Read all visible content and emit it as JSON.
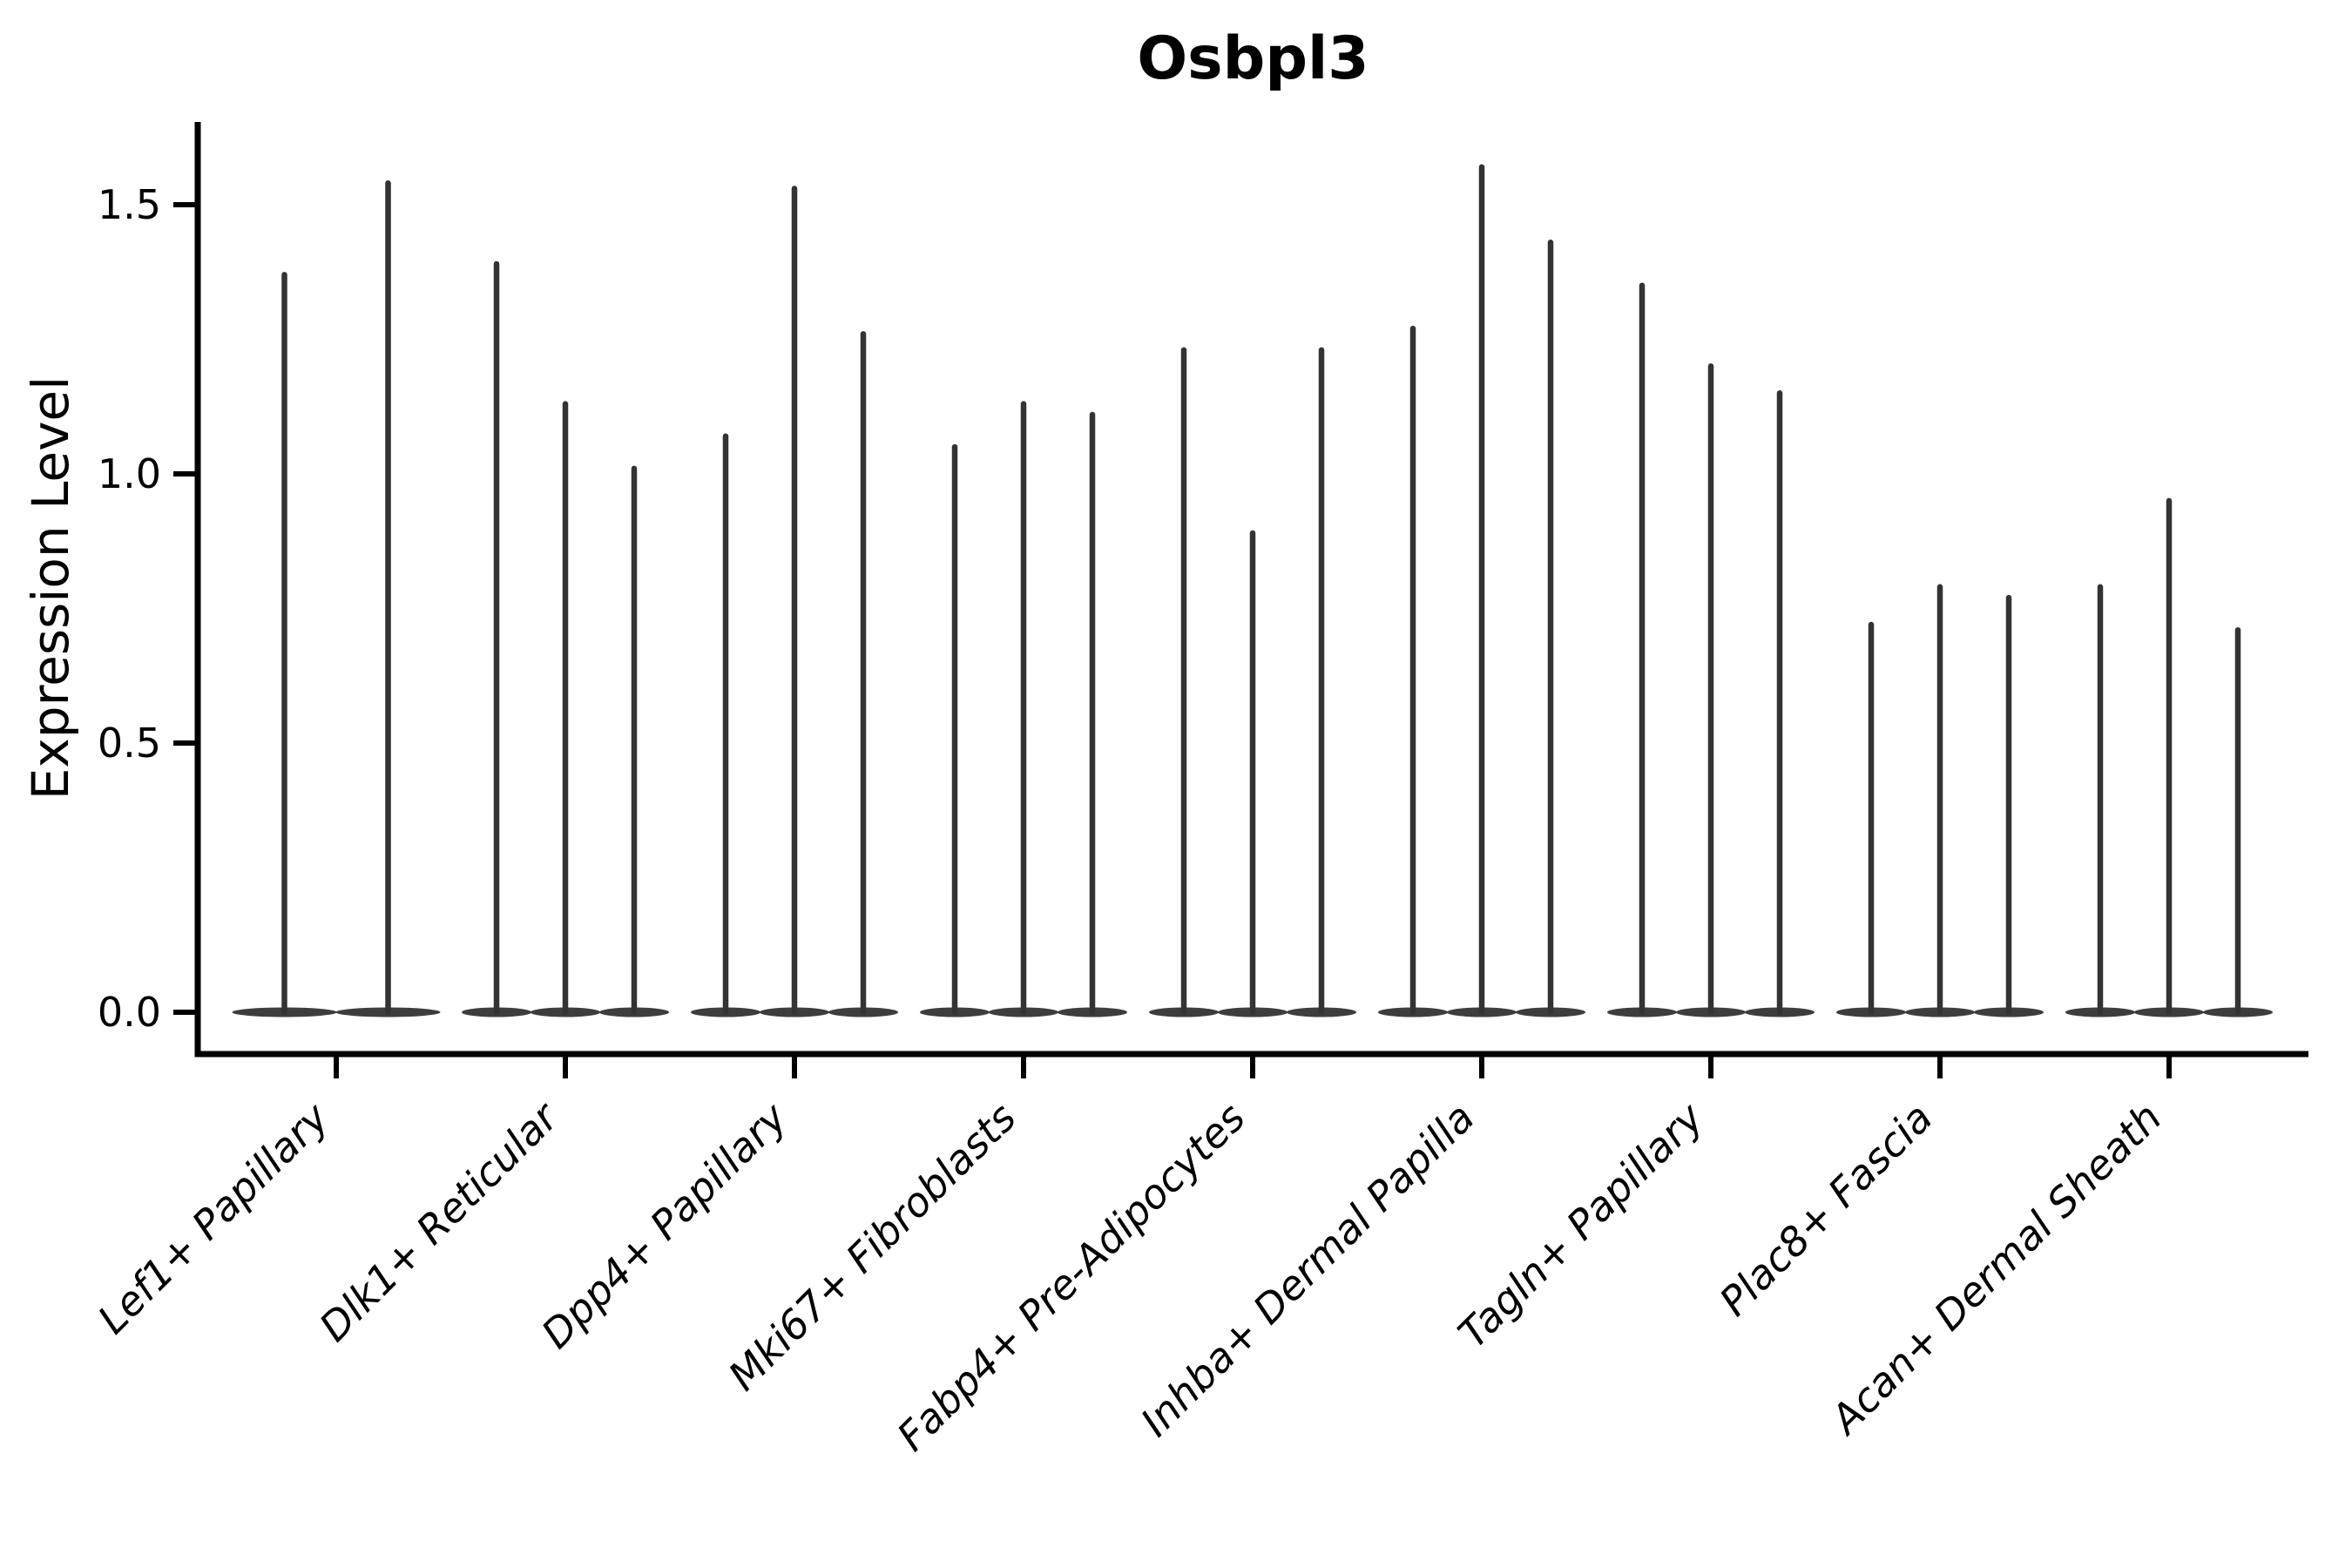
{
  "chart_data": {
    "type": "violin",
    "title": "Osbpl3",
    "ylabel": "Expression Level",
    "xlabel": "",
    "categories": [
      "Lef1+ Papillary",
      "Dlk1+ Reticular",
      "Dpp4+ Papillary",
      "Mki67+ Fibroblasts",
      "Fabp4+ Pre-Adipocytes",
      "Inhba+ Dermal Papilla",
      "Tagln+ Papillary",
      "Plac8+ Fascia",
      "Acan+ Dermal Sheath"
    ],
    "yticks": [
      0.0,
      0.5,
      1.0,
      1.5
    ],
    "ytick_labels": [
      "0.0",
      "0.5",
      "1.0",
      "1.5"
    ],
    "ylim": [
      -0.078,
      1.655
    ],
    "grid": false,
    "legend": "none",
    "violins_per_category": [
      2,
      3,
      3,
      3,
      3,
      3,
      3,
      3,
      3
    ],
    "violin_peak_values": [
      [
        1.37,
        1.54
      ],
      [
        1.39,
        1.13,
        1.01
      ],
      [
        1.07,
        1.53,
        1.26
      ],
      [
        1.05,
        1.13,
        1.11
      ],
      [
        1.23,
        0.89,
        1.23
      ],
      [
        1.27,
        1.57,
        1.43
      ],
      [
        1.35,
        1.2,
        1.15
      ],
      [
        0.72,
        0.79,
        0.77
      ],
      [
        0.79,
        0.95,
        0.71
      ]
    ],
    "baseline_value": 0.0,
    "description": "Narrow violin plots: each violin is a thin vertical spike rising from a flat dense base at expression 0 up to its peak expression value.",
    "colors": {
      "violin": "#333333",
      "axis": "#000000",
      "text": "#000000",
      "background": "#ffffff"
    }
  }
}
